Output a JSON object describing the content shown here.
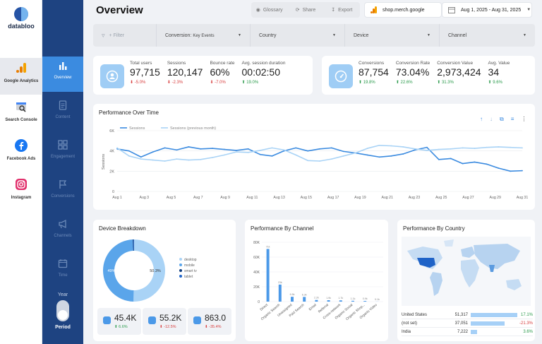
{
  "app": {
    "brand": "databloo",
    "page_title": "Overview"
  },
  "sources": [
    {
      "label": "Google Analytics",
      "icon": "google-analytics-icon",
      "active": true
    },
    {
      "label": "Search Console",
      "icon": "search-console-icon",
      "active": false
    },
    {
      "label": "Facebook Ads",
      "icon": "facebook-icon",
      "active": false
    },
    {
      "label": "Instagram",
      "icon": "instagram-icon",
      "active": false
    }
  ],
  "nav": [
    {
      "label": "Overview",
      "icon": "bar-chart-icon",
      "active": true
    },
    {
      "label": "Content",
      "icon": "document-icon",
      "active": false
    },
    {
      "label": "Engagement",
      "icon": "grid-icon",
      "active": false
    },
    {
      "label": "Conversions",
      "icon": "flag-icon",
      "active": false
    },
    {
      "label": "Channels",
      "icon": "megaphone-icon",
      "active": false
    },
    {
      "label": "Time",
      "icon": "calendar-icon",
      "active": false
    }
  ],
  "period_toggle": {
    "option_top": "Year",
    "option_bottom": "Period",
    "selected": "Period"
  },
  "toolbar": {
    "glossary": "Glossary",
    "share": "Share",
    "export": "Export"
  },
  "account": "shop.merch.google",
  "date_range": "Aug 1, 2025 - Aug 31, 2025",
  "filters": {
    "add_filter": "+ Filter",
    "conversion_label": "Conversion:",
    "conversion_value": "Key Events",
    "country": "Country",
    "device": "Device",
    "channel": "Channel"
  },
  "kpis_left": [
    {
      "label": "Total users",
      "value": "97,715",
      "delta": "-5.0%",
      "trend": "down"
    },
    {
      "label": "Sessions",
      "value": "120,147",
      "delta": "-2.3%",
      "trend": "down"
    },
    {
      "label": "Bounce rate",
      "value": "60%",
      "delta": "-7.0%",
      "trend": "down"
    },
    {
      "label": "Avg. session duration",
      "value": "00:02:50",
      "delta": "19.0%",
      "trend": "up"
    }
  ],
  "kpis_right": [
    {
      "label": "Conversions",
      "value": "87,754",
      "delta": "19.8%",
      "trend": "up"
    },
    {
      "label": "Conversion Rate",
      "value": "73.04%",
      "delta": "22.6%",
      "trend": "up"
    },
    {
      "label": "Conversion Value",
      "value": "2,973,424",
      "delta": "31.3%",
      "trend": "up"
    },
    {
      "label": "Avg. Value",
      "value": "34",
      "delta": "9.6%",
      "trend": "up"
    }
  ],
  "performance": {
    "title": "Performance Over Time"
  },
  "device": {
    "title": "Device Breakdown",
    "stats": [
      {
        "value": "45.4K",
        "delta": "6.6%",
        "trend": "up"
      },
      {
        "value": "55.2K",
        "delta": "-12.5%",
        "trend": "down"
      },
      {
        "value": "863.0",
        "delta": "-35.4%",
        "trend": "down"
      }
    ]
  },
  "channel": {
    "title": "Performance By Channel"
  },
  "country": {
    "title": "Performance By Country",
    "rows": [
      {
        "name": "United States",
        "value": "51,317",
        "pct": "17.1%",
        "trend": "up",
        "bar": 1.0
      },
      {
        "name": "(not set)",
        "value": "37,051",
        "pct": "-21.3%",
        "trend": "down",
        "bar": 0.72
      },
      {
        "name": "India",
        "value": "7,222",
        "pct": "3.6%",
        "trend": "up",
        "bar": 0.14
      }
    ]
  },
  "colors": {
    "primary": "#3b8be0",
    "light": "#9fcdf5",
    "nav": "#1e4381",
    "neg": "#d84040",
    "pos": "#2a9a4b"
  },
  "chart_data": [
    {
      "type": "line",
      "title": "Performance Over Time",
      "ylabel": "Sessions",
      "ylim": [
        0,
        6000
      ],
      "yticks": [
        "0",
        "2K",
        "4K",
        "6K"
      ],
      "x_ticks": [
        "Aug 1",
        "Aug 3",
        "Aug 5",
        "Aug 7",
        "Aug 9",
        "Aug 11",
        "Aug 13",
        "Aug 15",
        "Aug 17",
        "Aug 19",
        "Aug 21",
        "Aug 23",
        "Aug 25",
        "Aug 27",
        "Aug 29",
        "Aug 31"
      ],
      "series": [
        {
          "name": "Sessions",
          "values": [
            4200,
            4000,
            3400,
            3900,
            4300,
            4100,
            4400,
            4200,
            4250,
            4150,
            4050,
            4200,
            3650,
            3500,
            4000,
            4300,
            4000,
            4200,
            4300,
            3950,
            3800,
            3600,
            3400,
            3500,
            3700,
            4100,
            4350,
            3150,
            3250,
            2750,
            2900,
            2700,
            2300,
            2000,
            2050
          ]
        },
        {
          "name": "Sessions (previous month)",
          "values": [
            4300,
            3500,
            3200,
            3100,
            3000,
            3200,
            3100,
            3150,
            3350,
            3600,
            3900,
            3850,
            4050,
            4300,
            4100,
            3600,
            3050,
            3000,
            3200,
            3500,
            3800,
            4250,
            4550,
            4500,
            4400,
            4200,
            4050,
            4150,
            4200,
            4300,
            4250,
            4350,
            4400,
            4350,
            4300
          ]
        }
      ]
    },
    {
      "type": "pie",
      "title": "Device Breakdown",
      "series": [
        {
          "name": "desktop",
          "value": 50.3
        },
        {
          "name": "mobile",
          "value": 49.0
        },
        {
          "name": "smart tv",
          "value": 0.4
        },
        {
          "name": "tablet",
          "value": 0.3
        }
      ],
      "labels": [
        "50.3%",
        "49%"
      ]
    },
    {
      "type": "bar",
      "title": "Performance By Channel",
      "categories": [
        "Direct",
        "Organic Search",
        "Unassigned",
        "Paid Search",
        "Email",
        "Referral",
        "Cross-network",
        "Organic Social",
        "Organic Shop...",
        "Organic Video"
      ],
      "values": [
        71000,
        23000,
        6500,
        6300,
        2200,
        1900,
        1700,
        1100,
        900,
        100
      ],
      "labels": [
        "71k",
        "23k",
        "6.5k",
        "6.3k",
        "2.2k",
        "1.9k",
        "1.7k",
        "1.1k",
        "0.9k",
        "0.1k"
      ],
      "yticks": [
        "0",
        "20K",
        "40K",
        "60K",
        "80K"
      ],
      "ylim": [
        0,
        80000
      ]
    }
  ]
}
